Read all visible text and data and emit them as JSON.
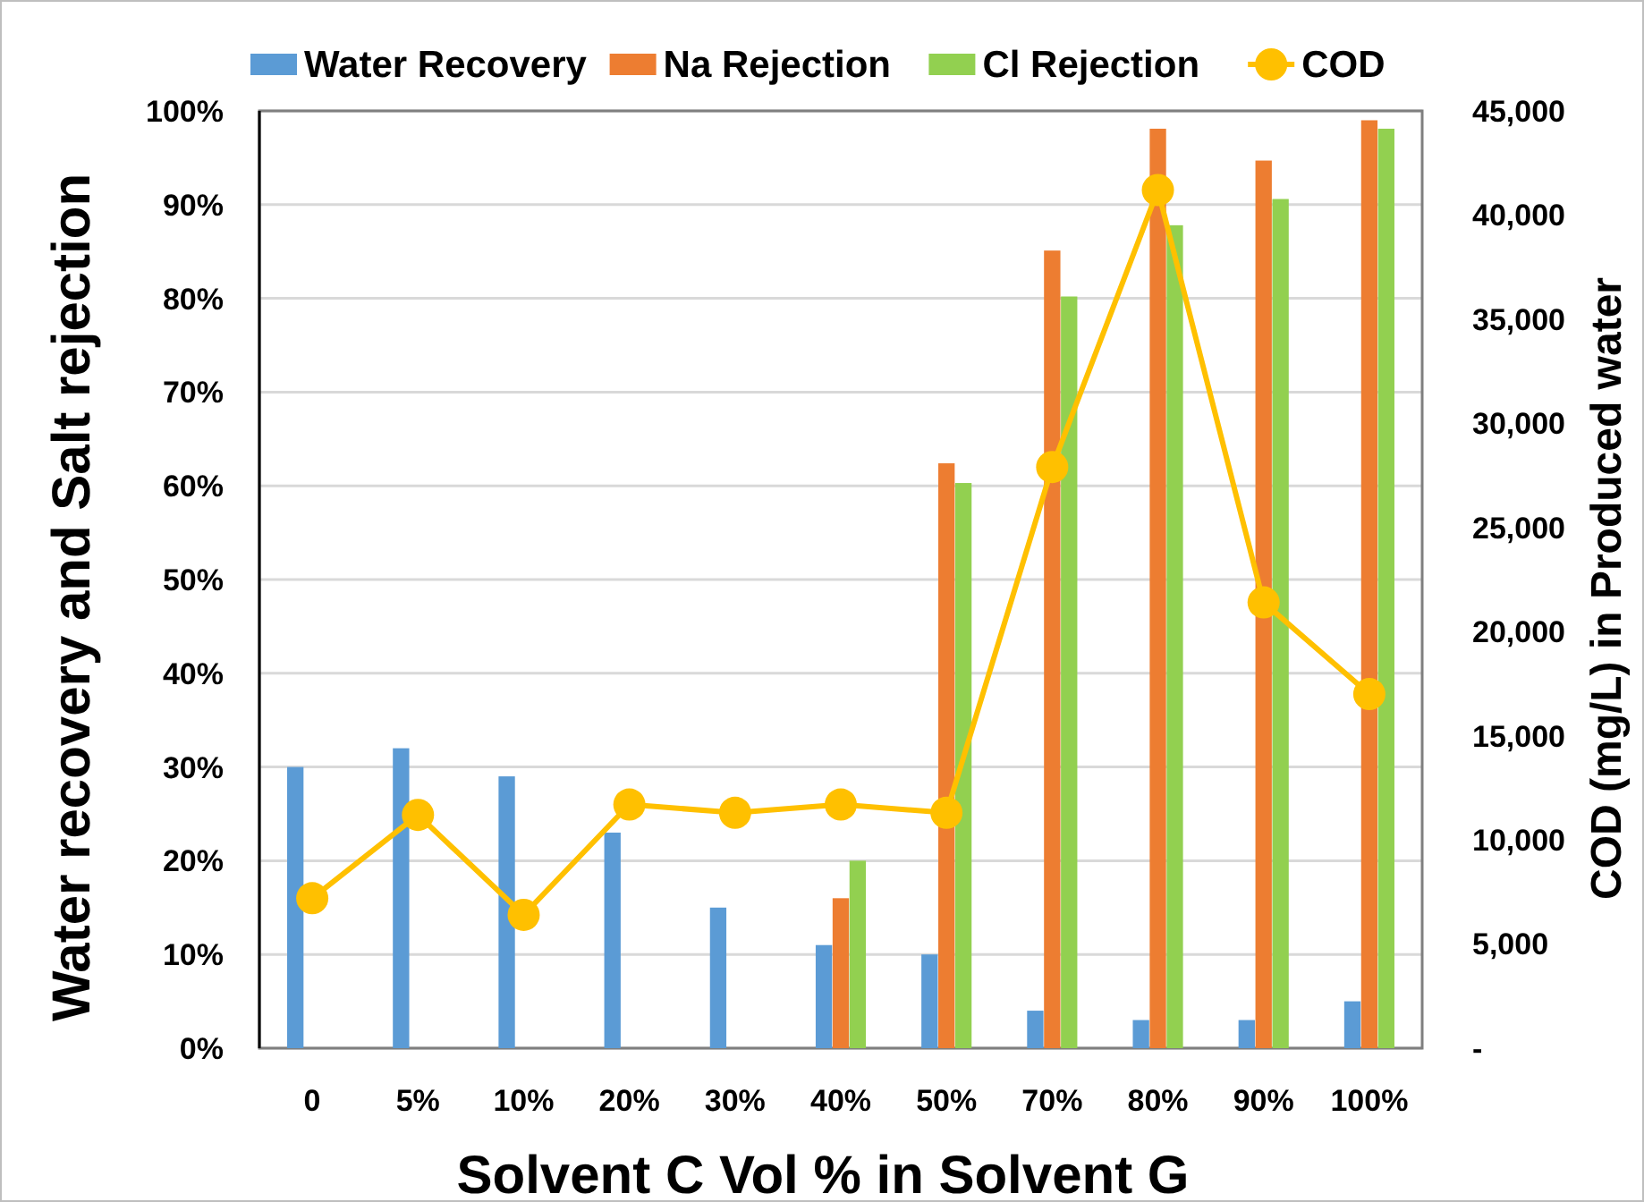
{
  "chart_data": {
    "type": "bar",
    "xlabel": "Solvent C Vol % in Solvent G",
    "ylabel": "Water recovery and Salt rejection",
    "y2label": "COD (mg/L) in Produced water",
    "categories": [
      "0",
      "5%",
      "10%",
      "20%",
      "30%",
      "40%",
      "50%",
      "70%",
      "80%",
      "90%",
      "100%"
    ],
    "series": [
      {
        "name": "Water Recovery",
        "color": "#5b9bd5",
        "values": [
          30,
          32,
          29,
          23,
          15,
          11,
          10,
          4,
          3,
          3,
          5
        ]
      },
      {
        "name": "Na Rejection",
        "color": "#ed7d31",
        "values": [
          null,
          null,
          null,
          null,
          null,
          16,
          62.4,
          85.1,
          98.1,
          94.7,
          99
        ]
      },
      {
        "name": "Cl Rejection",
        "color": "#92d050",
        "values": [
          null,
          null,
          null,
          null,
          null,
          20,
          60.3,
          80.2,
          87.8,
          90.6,
          98.1
        ]
      },
      {
        "name": "COD",
        "type": "line",
        "axis": "y2",
        "color": "#ffc000",
        "marker": "circle",
        "values": [
          7200,
          11200,
          6400,
          11700,
          11300,
          11700,
          11300,
          27900,
          41200,
          21400,
          17000
        ]
      }
    ],
    "ylim": [
      0,
      100
    ],
    "yticks": [
      {
        "value": 0,
        "label": "0%"
      },
      {
        "value": 10,
        "label": "10%"
      },
      {
        "value": 20,
        "label": "20%"
      },
      {
        "value": 30,
        "label": "30%"
      },
      {
        "value": 40,
        "label": "40%"
      },
      {
        "value": 50,
        "label": "50%"
      },
      {
        "value": 60,
        "label": "60%"
      },
      {
        "value": 70,
        "label": "70%"
      },
      {
        "value": 80,
        "label": "80%"
      },
      {
        "value": 90,
        "label": "90%"
      },
      {
        "value": 100,
        "label": "100%"
      }
    ],
    "y2lim": [
      0,
      45000
    ],
    "y2ticks": [
      {
        "value": 0,
        "label": "-"
      },
      {
        "value": 5000,
        "label": "5,000"
      },
      {
        "value": 10000,
        "label": "10,000"
      },
      {
        "value": 15000,
        "label": "15,000"
      },
      {
        "value": 20000,
        "label": "20,000"
      },
      {
        "value": 25000,
        "label": "25,000"
      },
      {
        "value": 30000,
        "label": "30,000"
      },
      {
        "value": 35000,
        "label": "35,000"
      },
      {
        "value": 40000,
        "label": "40,000"
      },
      {
        "value": 45000,
        "label": "45,000"
      }
    ],
    "grid": "y",
    "legend": "top"
  }
}
